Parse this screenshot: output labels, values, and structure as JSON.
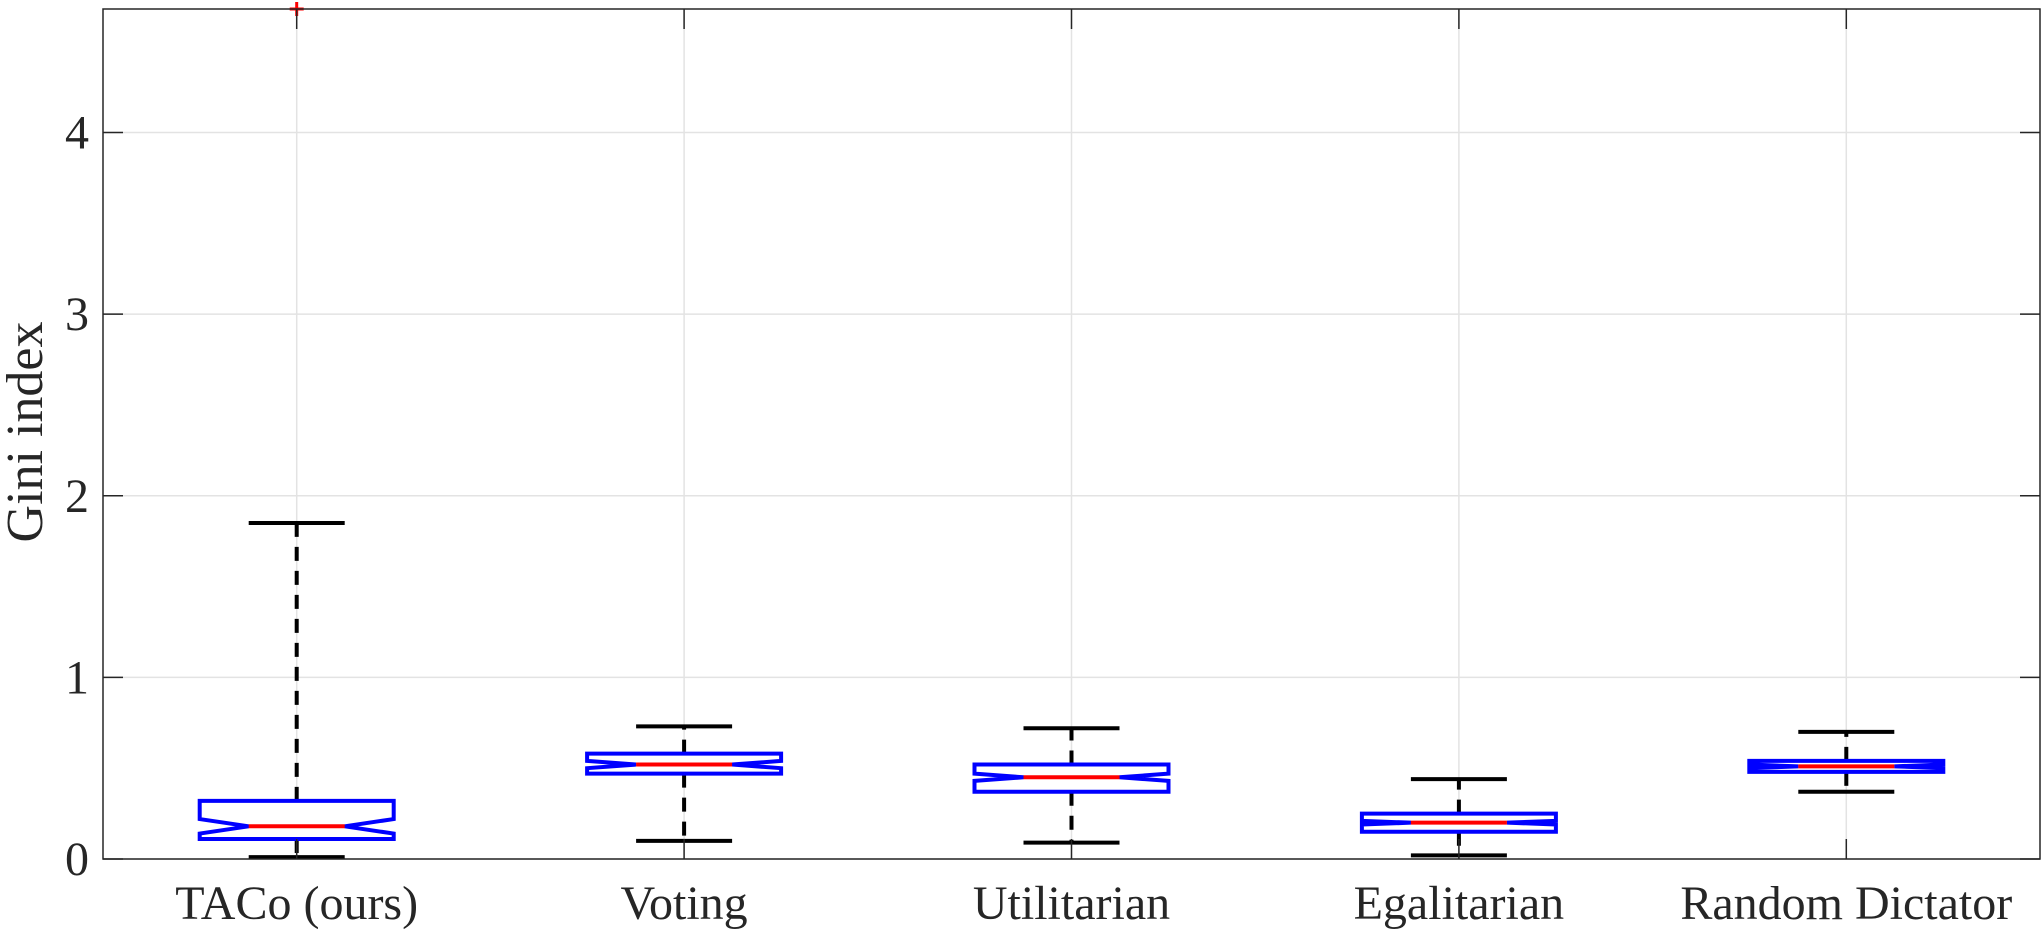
{
  "chart_data": {
    "type": "box",
    "ylabel": "Gini index",
    "ylim": [
      0,
      4.68
    ],
    "yticks": [
      0,
      1,
      2,
      3,
      4
    ],
    "grid": true,
    "notched": true,
    "colors": {
      "box": "#0000ff",
      "median": "#ff0000",
      "whisker": "#000000",
      "outlier": "#ff0000",
      "grid": "#e3e3e3",
      "axes": "#262626"
    },
    "categories": [
      "TACo (ours)",
      "Voting",
      "Utilitarian",
      "Egalitarian",
      "Random Dictator"
    ],
    "boxes": [
      {
        "label": "TACo (ours)",
        "min": 0.01,
        "q1": 0.11,
        "median": 0.18,
        "q3": 0.32,
        "max": 1.85,
        "notch_low": 0.14,
        "notch_high": 0.22,
        "outliers": [
          4.68
        ]
      },
      {
        "label": "Voting",
        "min": 0.1,
        "q1": 0.47,
        "median": 0.52,
        "q3": 0.58,
        "max": 0.73,
        "notch_low": 0.5,
        "notch_high": 0.54,
        "outliers": []
      },
      {
        "label": "Utilitarian",
        "min": 0.09,
        "q1": 0.37,
        "median": 0.45,
        "q3": 0.52,
        "max": 0.72,
        "notch_low": 0.43,
        "notch_high": 0.47,
        "outliers": []
      },
      {
        "label": "Egalitarian",
        "min": 0.02,
        "q1": 0.15,
        "median": 0.2,
        "q3": 0.25,
        "max": 0.44,
        "notch_low": 0.19,
        "notch_high": 0.21,
        "outliers": []
      },
      {
        "label": "Random Dictator",
        "min": 0.37,
        "q1": 0.48,
        "median": 0.51,
        "q3": 0.54,
        "max": 0.7,
        "notch_low": 0.5,
        "notch_high": 0.52,
        "outliers": []
      }
    ]
  }
}
